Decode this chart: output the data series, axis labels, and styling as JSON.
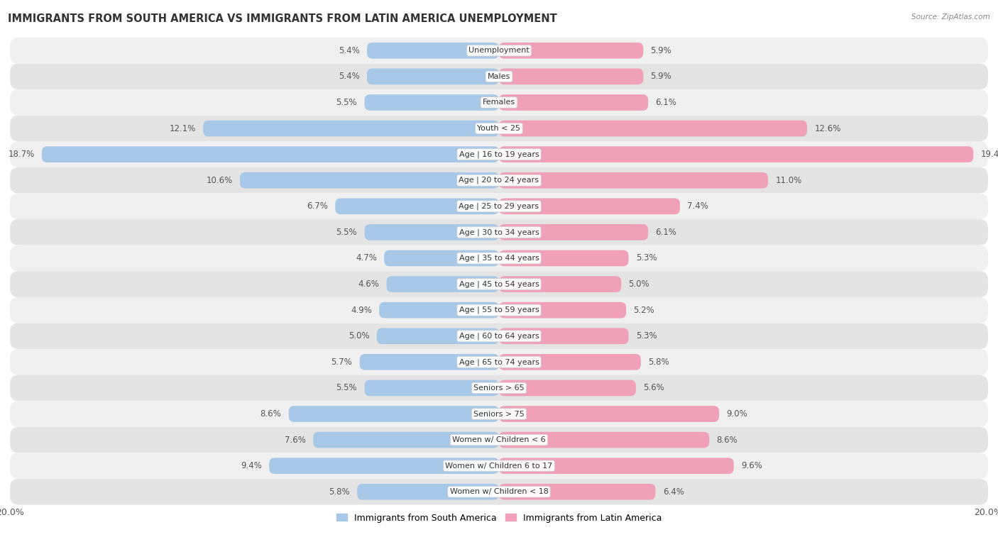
{
  "title": "IMMIGRANTS FROM SOUTH AMERICA VS IMMIGRANTS FROM LATIN AMERICA UNEMPLOYMENT",
  "source": "Source: ZipAtlas.com",
  "categories": [
    "Unemployment",
    "Males",
    "Females",
    "Youth < 25",
    "Age | 16 to 19 years",
    "Age | 20 to 24 years",
    "Age | 25 to 29 years",
    "Age | 30 to 34 years",
    "Age | 35 to 44 years",
    "Age | 45 to 54 years",
    "Age | 55 to 59 years",
    "Age | 60 to 64 years",
    "Age | 65 to 74 years",
    "Seniors > 65",
    "Seniors > 75",
    "Women w/ Children < 6",
    "Women w/ Children 6 to 17",
    "Women w/ Children < 18"
  ],
  "south_america": [
    5.4,
    5.4,
    5.5,
    12.1,
    18.7,
    10.6,
    6.7,
    5.5,
    4.7,
    4.6,
    4.9,
    5.0,
    5.7,
    5.5,
    8.6,
    7.6,
    9.4,
    5.8
  ],
  "latin_america": [
    5.9,
    5.9,
    6.1,
    12.6,
    19.4,
    11.0,
    7.4,
    6.1,
    5.3,
    5.0,
    5.2,
    5.3,
    5.8,
    5.6,
    9.0,
    8.6,
    9.6,
    6.4
  ],
  "south_america_color": "#a8c8e8",
  "latin_america_color": "#f0a0b8",
  "row_color_odd": "#f0f0f0",
  "row_color_even": "#e4e4e4",
  "axis_max": 20.0,
  "bar_height": 0.62,
  "label_fontsize": 8.5,
  "title_fontsize": 10.5,
  "legend_label_south": "Immigrants from South America",
  "legend_label_latin": "Immigrants from Latin America",
  "south_america_legend_color": "#a8c8e8",
  "latin_america_legend_color": "#f0a0b8"
}
